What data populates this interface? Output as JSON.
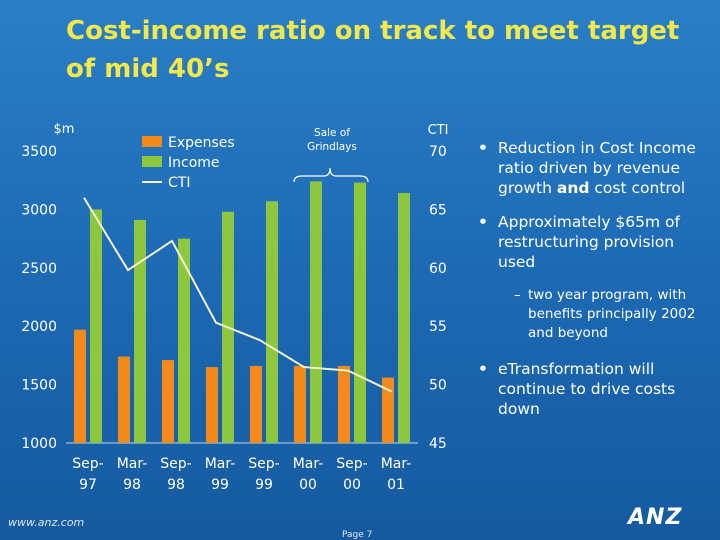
{
  "title": "Cost-income ratio on track to meet target of mid 40’s",
  "bullets": [
    {
      "text": "Reduction in Cost Income ratio driven by revenue growth",
      "bold_word": "and",
      "tail": "cost control"
    },
    {
      "text": "Approximately $65m of restructuring provision used"
    },
    {
      "sub": "two year program, with benefits principally 2002 and beyond"
    },
    {
      "text": "eTransformation will continue to drive costs down"
    }
  ],
  "footer": {
    "url": "www.anz.com",
    "page": "Page 7",
    "logo": "ANZ"
  },
  "colors": {
    "expenses": "#f28a1c",
    "income": "#8dc63f",
    "cti": "#f5f2c8",
    "title": "#f4e84a"
  },
  "chart_data": {
    "type": "bar",
    "categories": [
      [
        "Sep-",
        "97"
      ],
      [
        "Mar-",
        "98"
      ],
      [
        "Sep-",
        "98"
      ],
      [
        "Mar-",
        "99"
      ],
      [
        "Sep-",
        "99"
      ],
      [
        "Mar-",
        "00"
      ],
      [
        "Sep-",
        "00"
      ],
      [
        "Mar-",
        "01"
      ]
    ],
    "series": [
      {
        "name": "Expenses",
        "type": "bar",
        "axis": "left",
        "values": [
          1970,
          1740,
          1710,
          1650,
          1660,
          1660,
          1660,
          1560
        ]
      },
      {
        "name": "Income",
        "type": "bar",
        "axis": "left",
        "values": [
          3000,
          2910,
          2750,
          2980,
          3070,
          3240,
          3230,
          3140
        ]
      },
      {
        "name": "CTI",
        "type": "line",
        "axis": "right",
        "values": [
          66.0,
          59.8,
          62.3,
          55.3,
          53.8,
          51.5,
          51.2,
          49.4
        ]
      }
    ],
    "y_left": {
      "label": "$m",
      "min": 1000,
      "max": 3500,
      "ticks": [
        "1000",
        "1500",
        "2000",
        "2500",
        "3000",
        "3500"
      ]
    },
    "y_right": {
      "label": "CTI",
      "min": 45,
      "max": 70,
      "ticks": [
        "45",
        "50",
        "55",
        "60",
        "65",
        "70"
      ]
    },
    "annotation": {
      "text_lines": [
        "Sale of",
        "Grindlays"
      ],
      "from_category": 5,
      "to_category": 6
    },
    "legend": {
      "placement": "top-left"
    }
  }
}
